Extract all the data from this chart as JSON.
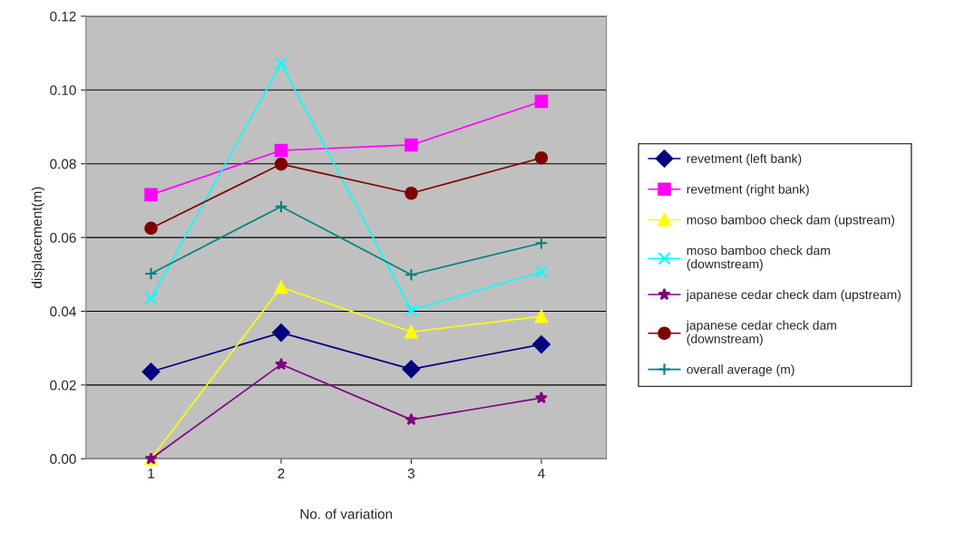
{
  "chart_data": {
    "type": "line",
    "xlabel": "No. of variation",
    "ylabel": "displacement(m)",
    "categories": [
      "1",
      "2",
      "3",
      "4"
    ],
    "ylim": [
      0,
      0.12
    ],
    "yticks": [
      {
        "value": 0,
        "label": "0.00"
      },
      {
        "value": 0.02,
        "label": "0.02"
      },
      {
        "value": 0.04,
        "label": "0.04"
      },
      {
        "value": 0.06,
        "label": "0.06"
      },
      {
        "value": 0.08,
        "label": "0.08"
      },
      {
        "value": 0.1,
        "label": "0.10"
      },
      {
        "value": 0.12,
        "label": "0.12"
      }
    ],
    "grid": "y",
    "legend": "right",
    "series": [
      {
        "name": "revetment (left bank)",
        "color": "#000080",
        "marker": "diamond",
        "values": [
          0.0236,
          0.0342,
          0.0243,
          0.031
        ]
      },
      {
        "name": "revetment (right bank)",
        "color": "#ff00ff",
        "marker": "square",
        "values": [
          0.0716,
          0.0836,
          0.0851,
          0.0969
        ]
      },
      {
        "name": "moso bamboo check dam (upstream)",
        "color": "#ffff00",
        "marker": "triangle",
        "values": [
          0.0,
          0.0465,
          0.0344,
          0.0386
        ]
      },
      {
        "name": "moso bamboo check dam\n(downstream)",
        "color": "#00ffff",
        "marker": "cross",
        "values": [
          0.0435,
          0.1072,
          0.0403,
          0.0507
        ]
      },
      {
        "name": "japanese cedar check dam (upstream)",
        "color": "#800080",
        "marker": "star",
        "values": [
          0.0,
          0.0256,
          0.0106,
          0.0165
        ]
      },
      {
        "name": "japanese cedar check dam\n(downstream)",
        "color": "#800000",
        "marker": "circle",
        "values": [
          0.0625,
          0.0799,
          0.072,
          0.0816
        ]
      },
      {
        "name": "overall average (m)",
        "color": "#008080",
        "marker": "plus",
        "values": [
          0.0502,
          0.0684,
          0.0499,
          0.0585
        ]
      }
    ]
  }
}
